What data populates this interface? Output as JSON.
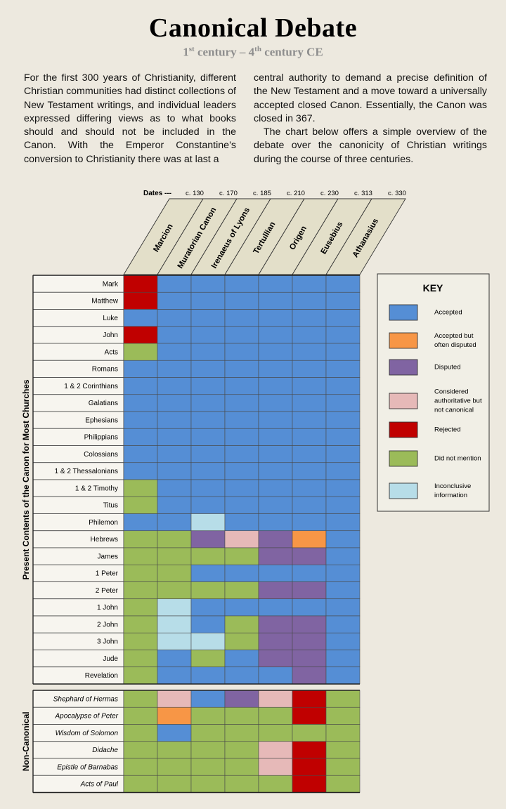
{
  "title": "Canonical Debate",
  "subtitle": {
    "start_num": "1",
    "start_sup": "st",
    "start_text": " century – ",
    "end_num": "4",
    "end_sup": "th",
    "end_text": " century CE"
  },
  "intro": {
    "col1": "For the first 300 years of Christianity, different Christian communities had distinct collections of New Testament writings, and individual leaders expressed differing views as to what books should and should not be included in the Canon. With the Emperor Constantine’s conversion to Christianity there was at last a",
    "col2_p1": "central authority to demand a precise definition of the New Testament and a move toward a universally accepted closed Canon. Essentially, the Canon was closed in 367.",
    "col2_p2": "The chart below offers a simple overview of the debate over the canonicity of Christian writings during the course of three centuries."
  },
  "colors": {
    "A": "#558ed5",
    "AD": "#f79646",
    "D": "#8064a2",
    "T": "#e6b9b8",
    "R": "#c00000",
    "N": "#9bbb59",
    "I": "#b7dde8"
  },
  "chart_data": {
    "type": "table",
    "dates_label": "Dates ---",
    "columns": [
      {
        "name": "Marcion",
        "date": "c. 130"
      },
      {
        "name": "Muratorian Canon",
        "date": "c. 170"
      },
      {
        "name": "Irenaeus of Lyons",
        "date": "c. 185"
      },
      {
        "name": "Tertullian",
        "date": "c. 210"
      },
      {
        "name": "Origen",
        "date": "c. 230"
      },
      {
        "name": "Eusebius",
        "date": "c. 313"
      },
      {
        "name": "Athanasius",
        "date": "c. 330"
      }
    ],
    "groups": [
      {
        "label": "Present Contents of the Canon for Most Churches",
        "italic": false,
        "rows": [
          {
            "name": "Mark",
            "cells": [
              "R",
              "A",
              "A",
              "A",
              "A",
              "A",
              "A"
            ]
          },
          {
            "name": "Matthew",
            "cells": [
              "R",
              "A",
              "A",
              "A",
              "A",
              "A",
              "A"
            ]
          },
          {
            "name": "Luke",
            "cells": [
              "A",
              "A",
              "A",
              "A",
              "A",
              "A",
              "A"
            ]
          },
          {
            "name": "John",
            "cells": [
              "R",
              "A",
              "A",
              "A",
              "A",
              "A",
              "A"
            ]
          },
          {
            "name": "Acts",
            "cells": [
              "N",
              "A",
              "A",
              "A",
              "A",
              "A",
              "A"
            ]
          },
          {
            "name": "Romans",
            "cells": [
              "A",
              "A",
              "A",
              "A",
              "A",
              "A",
              "A"
            ]
          },
          {
            "name": "1 & 2 Corinthians",
            "cells": [
              "A",
              "A",
              "A",
              "A",
              "A",
              "A",
              "A"
            ]
          },
          {
            "name": "Galatians",
            "cells": [
              "A",
              "A",
              "A",
              "A",
              "A",
              "A",
              "A"
            ]
          },
          {
            "name": "Ephesians",
            "cells": [
              "A",
              "A",
              "A",
              "A",
              "A",
              "A",
              "A"
            ]
          },
          {
            "name": "Philippians",
            "cells": [
              "A",
              "A",
              "A",
              "A",
              "A",
              "A",
              "A"
            ]
          },
          {
            "name": "Colossians",
            "cells": [
              "A",
              "A",
              "A",
              "A",
              "A",
              "A",
              "A"
            ]
          },
          {
            "name": "1 & 2 Thessalonians",
            "cells": [
              "A",
              "A",
              "A",
              "A",
              "A",
              "A",
              "A"
            ]
          },
          {
            "name": "1 & 2 Timothy",
            "cells": [
              "N",
              "A",
              "A",
              "A",
              "A",
              "A",
              "A"
            ]
          },
          {
            "name": "Titus",
            "cells": [
              "N",
              "A",
              "A",
              "A",
              "A",
              "A",
              "A"
            ]
          },
          {
            "name": "Philemon",
            "cells": [
              "A",
              "A",
              "I",
              "A",
              "A",
              "A",
              "A"
            ]
          },
          {
            "name": "Hebrews",
            "cells": [
              "N",
              "N",
              "D",
              "T",
              "D",
              "AD",
              "A"
            ]
          },
          {
            "name": "James",
            "cells": [
              "N",
              "N",
              "N",
              "N",
              "D",
              "D",
              "A"
            ]
          },
          {
            "name": "1 Peter",
            "cells": [
              "N",
              "N",
              "A",
              "A",
              "A",
              "A",
              "A"
            ]
          },
          {
            "name": "2 Peter",
            "cells": [
              "N",
              "N",
              "N",
              "N",
              "D",
              "D",
              "A"
            ]
          },
          {
            "name": "1 John",
            "cells": [
              "N",
              "I",
              "A",
              "A",
              "A",
              "A",
              "A"
            ]
          },
          {
            "name": "2 John",
            "cells": [
              "N",
              "I",
              "A",
              "N",
              "D",
              "D",
              "A"
            ]
          },
          {
            "name": "3 John",
            "cells": [
              "N",
              "I",
              "I",
              "N",
              "D",
              "D",
              "A"
            ]
          },
          {
            "name": "Jude",
            "cells": [
              "N",
              "A",
              "N",
              "A",
              "D",
              "D",
              "A"
            ]
          },
          {
            "name": "Revelation",
            "cells": [
              "N",
              "A",
              "A",
              "A",
              "A",
              "D",
              "A"
            ]
          }
        ]
      },
      {
        "label": "Non-Canonical",
        "italic": true,
        "rows": [
          {
            "name": "Shephard of Hermas",
            "cells": [
              "N",
              "T",
              "A",
              "D",
              "T",
              "R",
              "N"
            ]
          },
          {
            "name": "Apocalypse of Peter",
            "cells": [
              "N",
              "AD",
              "N",
              "N",
              "N",
              "R",
              "N"
            ]
          },
          {
            "name": "Wisdom of Solomon",
            "cells": [
              "N",
              "A",
              "N",
              "N",
              "N",
              "N",
              "N"
            ]
          },
          {
            "name": "Didache",
            "cells": [
              "N",
              "N",
              "N",
              "N",
              "T",
              "R",
              "N"
            ]
          },
          {
            "name": "Epistle of Barnabas",
            "cells": [
              "N",
              "N",
              "N",
              "N",
              "T",
              "R",
              "N"
            ]
          },
          {
            "name": "Acts of Paul",
            "cells": [
              "N",
              "N",
              "N",
              "N",
              "N",
              "R",
              "N"
            ]
          }
        ]
      }
    ],
    "key": {
      "title": "KEY",
      "items": [
        {
          "code": "A",
          "label": [
            "Accepted"
          ]
        },
        {
          "code": "AD",
          "label": [
            "Accepted but",
            "often disputed"
          ]
        },
        {
          "code": "D",
          "label": [
            "Disputed"
          ]
        },
        {
          "code": "T",
          "label": [
            "Considered",
            "authoritative but",
            "not canonical"
          ]
        },
        {
          "code": "R",
          "label": [
            "Rejected"
          ]
        },
        {
          "code": "N",
          "label": [
            "Did not mention"
          ]
        },
        {
          "code": "I",
          "label": [
            "Inconclusive",
            "information"
          ]
        }
      ]
    }
  }
}
